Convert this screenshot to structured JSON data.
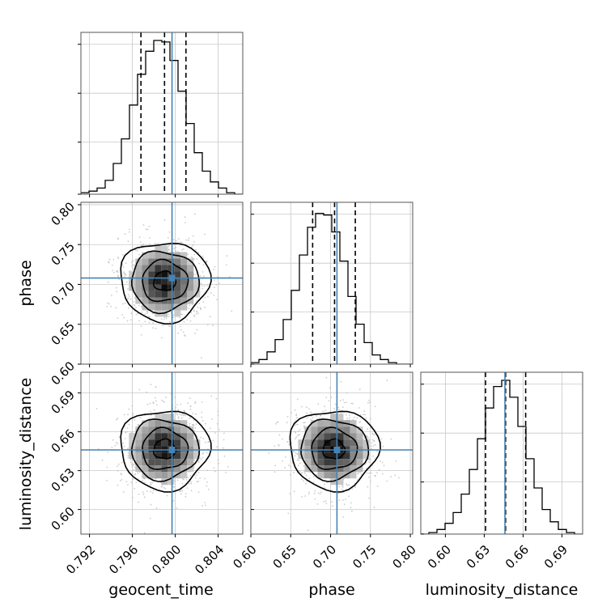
{
  "chart_data": {
    "type": "corner",
    "parameters": [
      "geocent_time",
      "phase",
      "luminosity_distance"
    ],
    "axis_labels": {
      "geocent_time": "geocent_time",
      "phase": "phase",
      "luminosity_distance": "luminosity_distance"
    },
    "ranges": {
      "geocent_time": [
        0.7912,
        0.8063
      ],
      "phase": [
        0.6,
        0.803
      ],
      "luminosity_distance": [
        0.581,
        0.706
      ]
    },
    "ticks": {
      "geocent_time": [
        0.792,
        0.796,
        0.8,
        0.804
      ],
      "phase": [
        0.6,
        0.65,
        0.7,
        0.75,
        0.8
      ],
      "luminosity_distance": [
        0.6,
        0.63,
        0.66,
        0.69
      ]
    },
    "tick_labels": {
      "geocent_time": [
        "0.792",
        "0.796",
        "0.800",
        "0.804"
      ],
      "phase": [
        "0.60",
        "0.65",
        "0.70",
        "0.75",
        "0.80"
      ],
      "luminosity_distance": [
        "0.60",
        "0.63",
        "0.66",
        "0.69"
      ]
    },
    "truths": {
      "geocent_time": 0.7997,
      "phase": 0.708,
      "luminosity_distance": 0.646
    },
    "quantiles": {
      "geocent_time": [
        0.7968,
        0.799,
        0.801
      ],
      "phase": [
        0.6775,
        0.705,
        0.731
      ],
      "luminosity_distance": [
        0.631,
        0.6465,
        0.662
      ]
    },
    "histograms": {
      "geocent_time": {
        "bin_start": 0.7912,
        "bin_width": 0.000755,
        "counts": [
          0.01,
          0.02,
          0.04,
          0.09,
          0.2,
          0.36,
          0.58,
          0.78,
          0.93,
          1.0,
          0.99,
          0.87,
          0.67,
          0.46,
          0.27,
          0.15,
          0.08,
          0.04,
          0.01,
          0.0
        ]
      },
      "phase": {
        "bin_start": 0.6,
        "bin_width": 0.01015,
        "counts": [
          0.01,
          0.03,
          0.08,
          0.16,
          0.29,
          0.48,
          0.71,
          0.89,
          0.98,
          0.97,
          0.86,
          0.67,
          0.44,
          0.26,
          0.14,
          0.06,
          0.03,
          0.01,
          0.0,
          0.0
        ]
      },
      "luminosity_distance": {
        "bin_start": 0.581,
        "bin_width": 0.00625,
        "counts": [
          0.0,
          0.01,
          0.03,
          0.07,
          0.14,
          0.26,
          0.42,
          0.62,
          0.82,
          0.96,
          1.0,
          0.89,
          0.7,
          0.49,
          0.3,
          0.16,
          0.08,
          0.03,
          0.01,
          0.0
        ]
      }
    },
    "pairs": [
      {
        "x": "geocent_time",
        "y": "phase",
        "centroid": [
          0.799,
          0.704
        ]
      },
      {
        "x": "geocent_time",
        "y": "luminosity_distance",
        "centroid": [
          0.799,
          0.6465
        ]
      },
      {
        "x": "phase",
        "y": "luminosity_distance",
        "centroid": [
          0.704,
          0.6465
        ]
      }
    ],
    "grid": true,
    "colors": {
      "truth": "#4682b4",
      "hist": "#000000",
      "points": "#bbbbbb",
      "grid": "#c8c8c8"
    }
  }
}
